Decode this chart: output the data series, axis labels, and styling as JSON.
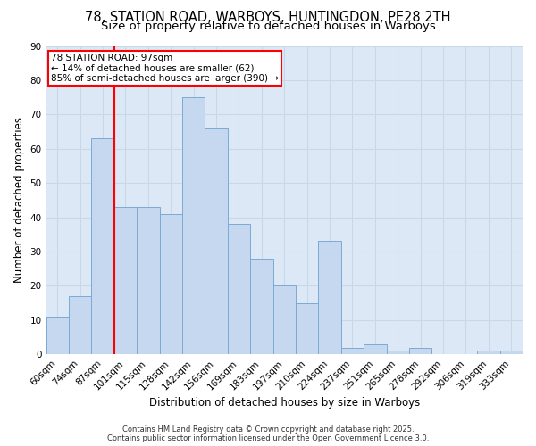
{
  "title": "78, STATION ROAD, WARBOYS, HUNTINGDON, PE28 2TH",
  "subtitle": "Size of property relative to detached houses in Warboys",
  "xlabel": "Distribution of detached houses by size in Warboys",
  "ylabel": "Number of detached properties",
  "categories": [
    "60sqm",
    "74sqm",
    "87sqm",
    "101sqm",
    "115sqm",
    "128sqm",
    "142sqm",
    "156sqm",
    "169sqm",
    "183sqm",
    "197sqm",
    "210sqm",
    "224sqm",
    "237sqm",
    "251sqm",
    "265sqm",
    "278sqm",
    "292sqm",
    "306sqm",
    "319sqm",
    "333sqm"
  ],
  "values": [
    11,
    17,
    63,
    43,
    43,
    41,
    75,
    66,
    38,
    28,
    20,
    15,
    33,
    2,
    3,
    1,
    2,
    0,
    0,
    1,
    1
  ],
  "bar_color": "#c5d8f0",
  "bar_edgecolor": "#7aabd4",
  "grid_color": "#c8d8e8",
  "background_color": "#ffffff",
  "plot_bg_color": "#dce8f5",
  "vline_color": "red",
  "vline_x_index": 3,
  "annotation_text": "78 STATION ROAD: 97sqm\n← 14% of detached houses are smaller (62)\n85% of semi-detached houses are larger (390) →",
  "annotation_box_facecolor": "white",
  "annotation_box_edgecolor": "red",
  "ylim": [
    0,
    90
  ],
  "yticks": [
    0,
    10,
    20,
    30,
    40,
    50,
    60,
    70,
    80,
    90
  ],
  "title_fontsize": 10.5,
  "subtitle_fontsize": 9.5,
  "label_fontsize": 8.5,
  "tick_fontsize": 7.5,
  "annot_fontsize": 7.5,
  "footnote_fontsize": 6.0,
  "footnote": "Contains HM Land Registry data © Crown copyright and database right 2025.\nContains public sector information licensed under the Open Government Licence 3.0."
}
